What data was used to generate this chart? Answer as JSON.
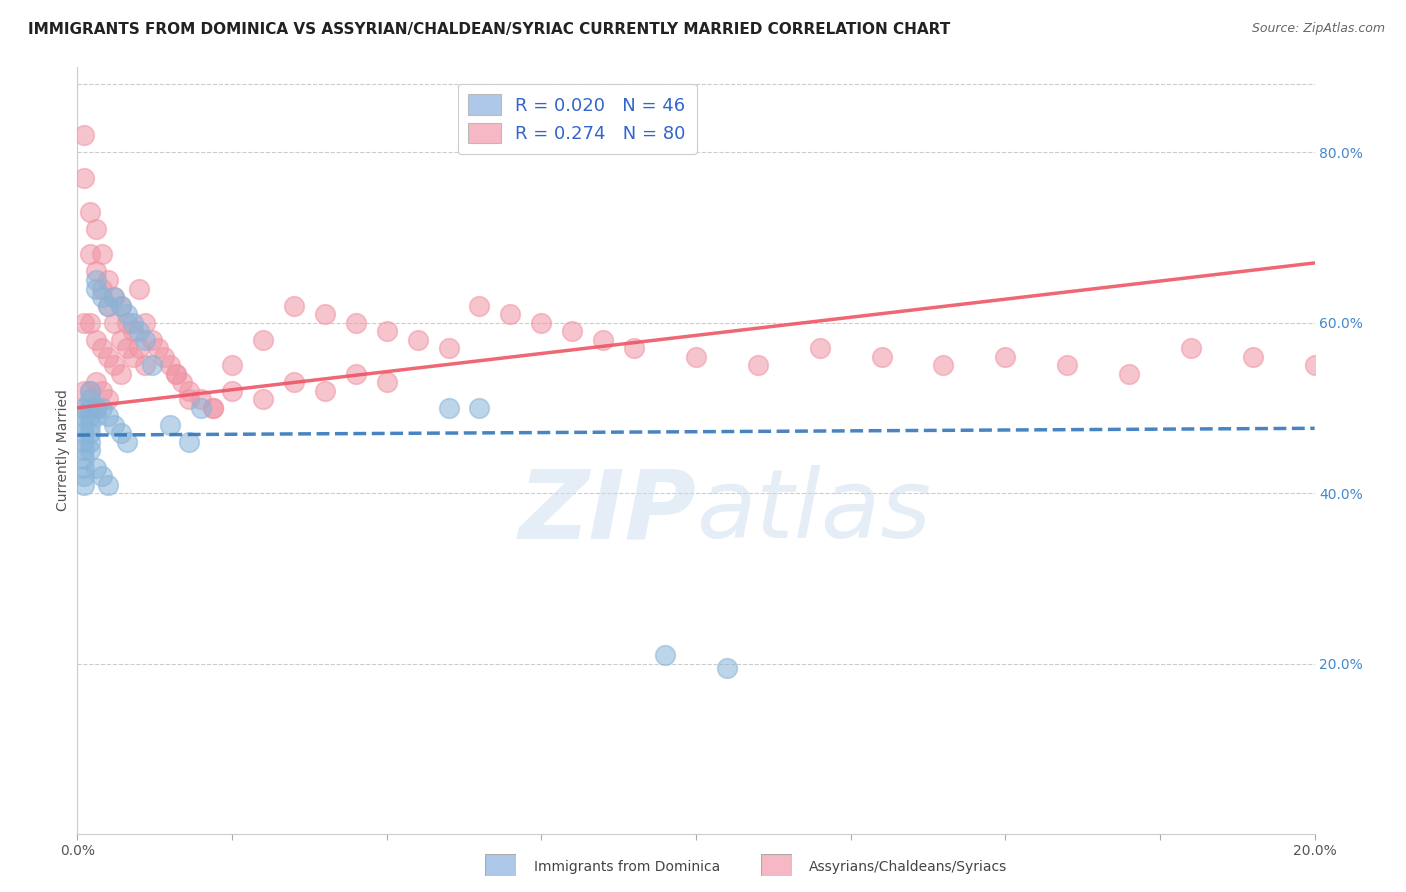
{
  "title": "IMMIGRANTS FROM DOMINICA VS ASSYRIAN/CHALDEAN/SYRIAC CURRENTLY MARRIED CORRELATION CHART",
  "source": "Source: ZipAtlas.com",
  "ylabel": "Currently Married",
  "right_yticks": [
    "80.0%",
    "60.0%",
    "40.0%",
    "20.0%"
  ],
  "right_ytick_vals": [
    0.8,
    0.6,
    0.4,
    0.2
  ],
  "watermark": "ZIPatlas",
  "legend1_label": "R = 0.020   N = 46",
  "legend2_label": "R = 0.274   N = 80",
  "legend1_color": "#adc8e8",
  "legend2_color": "#f5b8c4",
  "scatter1_color": "#88b4d8",
  "scatter2_color": "#f094a4",
  "line1_color": "#3377bb",
  "line2_color": "#ee5566",
  "bottom_label1": "Immigrants from Dominica",
  "bottom_label2": "Assyrians/Chaldeans/Syriacs",
  "xlim": [
    0.0,
    0.2
  ],
  "ylim": [
    0.0,
    0.9
  ],
  "blue_line_x": [
    0.0,
    0.2
  ],
  "blue_line_y": [
    0.468,
    0.476
  ],
  "pink_line_x": [
    0.0,
    0.2
  ],
  "pink_line_y": [
    0.5,
    0.67
  ],
  "title_fontsize": 11,
  "source_fontsize": 9,
  "axis_label_fontsize": 10,
  "tick_fontsize": 10,
  "legend_fontsize": 13,
  "blue_scatter_x": [
    0.001,
    0.001,
    0.001,
    0.001,
    0.001,
    0.001,
    0.001,
    0.001,
    0.001,
    0.001,
    0.002,
    0.002,
    0.002,
    0.002,
    0.002,
    0.002,
    0.002,
    0.002,
    0.003,
    0.003,
    0.003,
    0.003,
    0.003,
    0.004,
    0.004,
    0.004,
    0.005,
    0.005,
    0.005,
    0.006,
    0.006,
    0.007,
    0.007,
    0.008,
    0.008,
    0.009,
    0.01,
    0.011,
    0.012,
    0.015,
    0.018,
    0.02,
    0.06,
    0.065,
    0.095,
    0.105
  ],
  "blue_scatter_y": [
    0.5,
    0.49,
    0.48,
    0.47,
    0.46,
    0.45,
    0.44,
    0.43,
    0.42,
    0.41,
    0.52,
    0.51,
    0.5,
    0.49,
    0.48,
    0.47,
    0.46,
    0.45,
    0.65,
    0.64,
    0.5,
    0.49,
    0.43,
    0.63,
    0.5,
    0.42,
    0.62,
    0.49,
    0.41,
    0.63,
    0.48,
    0.62,
    0.47,
    0.61,
    0.46,
    0.6,
    0.59,
    0.58,
    0.55,
    0.48,
    0.46,
    0.5,
    0.5,
    0.5,
    0.21,
    0.195
  ],
  "pink_scatter_x": [
    0.001,
    0.001,
    0.001,
    0.001,
    0.001,
    0.002,
    0.002,
    0.002,
    0.002,
    0.002,
    0.003,
    0.003,
    0.003,
    0.003,
    0.003,
    0.004,
    0.004,
    0.004,
    0.004,
    0.005,
    0.005,
    0.005,
    0.005,
    0.006,
    0.006,
    0.006,
    0.007,
    0.007,
    0.007,
    0.008,
    0.008,
    0.009,
    0.009,
    0.01,
    0.01,
    0.011,
    0.011,
    0.012,
    0.013,
    0.014,
    0.015,
    0.016,
    0.017,
    0.018,
    0.02,
    0.022,
    0.025,
    0.03,
    0.035,
    0.04,
    0.045,
    0.05,
    0.055,
    0.06,
    0.065,
    0.07,
    0.075,
    0.08,
    0.085,
    0.09,
    0.1,
    0.11,
    0.12,
    0.13,
    0.14,
    0.15,
    0.16,
    0.17,
    0.18,
    0.19,
    0.2,
    0.016,
    0.018,
    0.022,
    0.025,
    0.03,
    0.035,
    0.04,
    0.045,
    0.05
  ],
  "pink_scatter_y": [
    0.82,
    0.77,
    0.6,
    0.52,
    0.5,
    0.73,
    0.68,
    0.6,
    0.52,
    0.5,
    0.71,
    0.66,
    0.58,
    0.53,
    0.5,
    0.68,
    0.64,
    0.57,
    0.52,
    0.65,
    0.62,
    0.56,
    0.51,
    0.63,
    0.6,
    0.55,
    0.62,
    0.58,
    0.54,
    0.6,
    0.57,
    0.59,
    0.56,
    0.64,
    0.57,
    0.6,
    0.55,
    0.58,
    0.57,
    0.56,
    0.55,
    0.54,
    0.53,
    0.52,
    0.51,
    0.5,
    0.55,
    0.58,
    0.62,
    0.61,
    0.6,
    0.59,
    0.58,
    0.57,
    0.62,
    0.61,
    0.6,
    0.59,
    0.58,
    0.57,
    0.56,
    0.55,
    0.57,
    0.56,
    0.55,
    0.56,
    0.55,
    0.54,
    0.57,
    0.56,
    0.55,
    0.54,
    0.51,
    0.5,
    0.52,
    0.51,
    0.53,
    0.52,
    0.54,
    0.53
  ]
}
